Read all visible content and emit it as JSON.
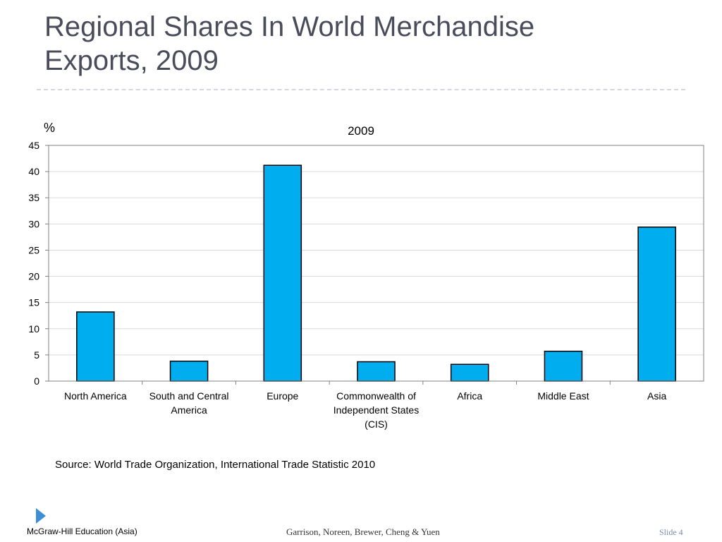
{
  "slide": {
    "title_line1": "Regional Shares In World Merchandise",
    "title_line2": "Exports, 2009",
    "source": "Source: World Trade Organization, International Trade Statistic 2010",
    "footer_left": "McGraw-Hill Education (Asia)",
    "footer_center": "Garrison, Noreen, Brewer, Cheng & Yuen",
    "footer_right": "Slide 4"
  },
  "chart_data": {
    "type": "bar",
    "title": "2009",
    "ylabel": "%",
    "xlabel": "",
    "ylim": [
      0,
      45
    ],
    "yticks": [
      0,
      5,
      10,
      15,
      20,
      25,
      30,
      35,
      40,
      45
    ],
    "grid": true,
    "categories": [
      "North America",
      "South and Central America",
      "Europe",
      "Commonwealth of Independent States (CIS)",
      "Africa",
      "Middle East",
      "Asia"
    ],
    "category_lines": [
      [
        "North America"
      ],
      [
        "South and Central",
        "America"
      ],
      [
        "Europe"
      ],
      [
        "Commonwealth of",
        "Independent States",
        "(CIS)"
      ],
      [
        "Africa"
      ],
      [
        "Middle East"
      ],
      [
        "Asia"
      ]
    ],
    "values": [
      13.2,
      3.8,
      41.2,
      3.7,
      3.2,
      5.7,
      29.4
    ],
    "colors": {
      "bar": "#00aeef",
      "bar_stroke": "#000000",
      "grid": "#d9d9d9",
      "axis": "#808080"
    }
  }
}
